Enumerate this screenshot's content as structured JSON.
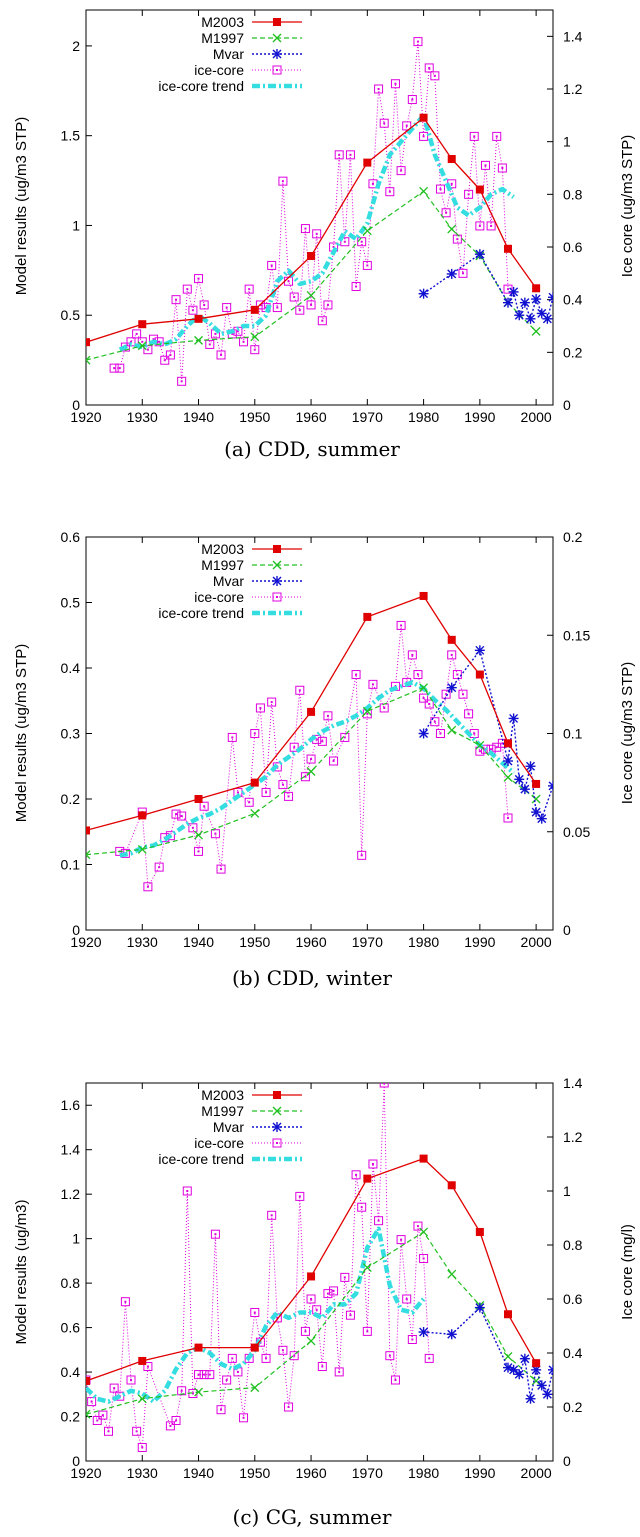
{
  "panels": [
    {
      "caption": "(a) CDD, summer",
      "ylabel": "Model results (ug/m3 STP)",
      "y2label": "Ice core (ug/m3 STP)",
      "xlim": [
        1920,
        2003
      ],
      "ylim": [
        0,
        2.2
      ],
      "y2lim": [
        0,
        1.5
      ],
      "xticks": [
        "1920",
        "1930",
        "1940",
        "1950",
        "1960",
        "1970",
        "1980",
        "1990",
        "2000"
      ],
      "yticks": [
        "0",
        "0.5",
        "1",
        "1.5",
        "2"
      ],
      "y2ticks": [
        "0",
        "0.2",
        "0.4",
        "0.6",
        "0.8",
        "1",
        "1.2",
        "1.4"
      ]
    },
    {
      "caption": "(b) CDD, winter",
      "ylabel": "Model results (ug/m3 STP)",
      "y2label": "Ice core (ug/m3 STP)",
      "xlim": [
        1920,
        2003
      ],
      "ylim": [
        0,
        0.6
      ],
      "y2lim": [
        0,
        0.2
      ],
      "xticks": [
        "1920",
        "1930",
        "1940",
        "1950",
        "1960",
        "1970",
        "1980",
        "1990",
        "2000"
      ],
      "yticks": [
        "0",
        "0.1",
        "0.2",
        "0.3",
        "0.4",
        "0.5",
        "0.6"
      ],
      "y2ticks": [
        "0",
        "0.05",
        "0.1",
        "0.15",
        "0.2"
      ]
    },
    {
      "caption": "(c) CG, summer",
      "ylabel": "Model results (ug/m3)",
      "y2label": "Ice core (mg/l)",
      "xlim": [
        1920,
        2003
      ],
      "ylim": [
        0,
        1.7
      ],
      "y2lim": [
        0,
        1.4
      ],
      "xticks": [
        "1920",
        "1930",
        "1940",
        "1950",
        "1960",
        "1970",
        "1980",
        "1990",
        "2000"
      ],
      "yticks": [
        "0",
        "0.2",
        "0.4",
        "0.6",
        "0.8",
        "1",
        "1.2",
        "1.4",
        "1.6"
      ],
      "y2ticks": [
        "0",
        "0.2",
        "0.4",
        "0.6",
        "0.8",
        "1",
        "1.2",
        "1.4"
      ]
    }
  ],
  "legend": [
    "M2003",
    "M1997",
    "Mvar",
    "ice-core",
    "ice-core trend"
  ],
  "colors": {
    "M2003": "#e00000",
    "M1997": "#20c020",
    "Mvar": "#1010d0",
    "ice-core": "#e000e0",
    "trend": "#33dde0"
  },
  "chart_data": [
    {
      "type": "line",
      "title": "(a) CDD, summer",
      "ylabel": "Model results (ug/m3 STP)",
      "y2label": "Ice core (ug/m3 STP)",
      "xlim": [
        1920,
        2003
      ],
      "ylim": [
        0,
        2.2
      ],
      "y2lim": [
        0,
        1.5
      ],
      "legend_position": "top-left",
      "series": [
        {
          "name": "M2003",
          "axis": "left",
          "x": [
            1920,
            1930,
            1940,
            1950,
            1960,
            1970,
            1980,
            1985,
            1990,
            1995,
            2000
          ],
          "y": [
            0.35,
            0.45,
            0.48,
            0.53,
            0.83,
            1.35,
            1.6,
            1.37,
            1.2,
            0.87,
            0.65
          ]
        },
        {
          "name": "M1997",
          "axis": "left",
          "x": [
            1920,
            1930,
            1940,
            1950,
            1960,
            1970,
            1980,
            1985,
            1990,
            1995,
            2000
          ],
          "y": [
            0.25,
            0.33,
            0.36,
            0.38,
            0.61,
            0.97,
            1.19,
            0.98,
            0.83,
            0.57,
            0.41
          ]
        },
        {
          "name": "Mvar",
          "axis": "left",
          "x": [
            1980,
            1985,
            1990,
            1995,
            1996,
            1997,
            1998,
            1999,
            2000,
            2001,
            2002,
            2003
          ],
          "y": [
            0.62,
            0.73,
            0.84,
            0.57,
            0.63,
            0.5,
            0.57,
            0.48,
            0.59,
            0.51,
            0.48,
            0.6
          ]
        },
        {
          "name": "ice-core",
          "axis": "right",
          "x": [
            1925,
            1926,
            1927,
            1928,
            1929,
            1930,
            1931,
            1932,
            1933,
            1934,
            1935,
            1936,
            1937,
            1938,
            1939,
            1940,
            1941,
            1942,
            1943,
            1944,
            1945,
            1946,
            1947,
            1948,
            1949,
            1950,
            1951,
            1952,
            1953,
            1954,
            1955,
            1956,
            1957,
            1958,
            1959,
            1960,
            1961,
            1962,
            1963,
            1964,
            1965,
            1966,
            1967,
            1968,
            1969,
            1970,
            1971,
            1972,
            1973,
            1974,
            1975,
            1976,
            1977,
            1978,
            1979,
            1980,
            1981,
            1982,
            1983,
            1984,
            1985,
            1986,
            1987,
            1988,
            1989,
            1990,
            1991,
            1992,
            1993,
            1994,
            1995
          ],
          "y": [
            0.14,
            0.14,
            0.22,
            0.24,
            0.27,
            0.24,
            0.21,
            0.25,
            0.24,
            0.17,
            0.19,
            0.4,
            0.09,
            0.44,
            0.36,
            0.48,
            0.38,
            0.23,
            0.27,
            0.19,
            0.37,
            0.27,
            0.28,
            0.24,
            0.44,
            0.21,
            0.38,
            0.37,
            0.53,
            0.37,
            0.85,
            0.47,
            0.41,
            0.36,
            0.67,
            0.38,
            0.65,
            0.32,
            0.38,
            0.6,
            0.95,
            0.62,
            0.95,
            0.45,
            0.62,
            0.53,
            0.84,
            1.2,
            1.07,
            0.81,
            1.22,
            0.89,
            1.06,
            1.16,
            1.38,
            1.02,
            1.28,
            1.25,
            0.82,
            0.73,
            0.84,
            0.63,
            0.5,
            0.8,
            1.02,
            0.68,
            0.91,
            0.68,
            1.02,
            0.9,
            0.44
          ]
        },
        {
          "name": "ice-core trend",
          "axis": "right",
          "x": [
            1926,
            1928,
            1930,
            1932,
            1934,
            1936,
            1938,
            1940,
            1942,
            1944,
            1946,
            1948,
            1950,
            1952,
            1954,
            1956,
            1958,
            1960,
            1962,
            1964,
            1966,
            1968,
            1970,
            1972,
            1974,
            1976,
            1978,
            1980,
            1982,
            1984,
            1986,
            1988,
            1990,
            1992,
            1994,
            1996
          ],
          "y": [
            0.21,
            0.23,
            0.22,
            0.24,
            0.23,
            0.25,
            0.3,
            0.34,
            0.31,
            0.27,
            0.28,
            0.3,
            0.3,
            0.34,
            0.47,
            0.51,
            0.46,
            0.47,
            0.5,
            0.58,
            0.66,
            0.63,
            0.69,
            0.84,
            0.95,
            1.0,
            1.05,
            1.1,
            0.95,
            0.85,
            0.75,
            0.72,
            0.75,
            0.8,
            0.82,
            0.79
          ]
        }
      ]
    },
    {
      "type": "line",
      "title": "(b) CDD, winter",
      "ylabel": "Model results (ug/m3 STP)",
      "y2label": "Ice core (ug/m3 STP)",
      "xlim": [
        1920,
        2003
      ],
      "ylim": [
        0,
        0.6
      ],
      "y2lim": [
        0,
        0.2
      ],
      "legend_position": "top-left",
      "series": [
        {
          "name": "M2003",
          "axis": "left",
          "x": [
            1920,
            1930,
            1940,
            1950,
            1960,
            1970,
            1980,
            1985,
            1990,
            1995,
            2000
          ],
          "y": [
            0.152,
            0.175,
            0.2,
            0.225,
            0.333,
            0.478,
            0.51,
            0.443,
            0.39,
            0.285,
            0.223
          ]
        },
        {
          "name": "M1997",
          "axis": "left",
          "x": [
            1920,
            1930,
            1940,
            1950,
            1960,
            1970,
            1980,
            1985,
            1990,
            1995,
            2000
          ],
          "y": [
            0.115,
            0.123,
            0.145,
            0.178,
            0.242,
            0.334,
            0.37,
            0.305,
            0.282,
            0.233,
            0.2
          ]
        },
        {
          "name": "Mvar",
          "axis": "left",
          "x": [
            1980,
            1985,
            1990,
            1995,
            1996,
            1997,
            1998,
            1999,
            2000,
            2001,
            2003
          ],
          "y": [
            0.3,
            0.37,
            0.427,
            0.258,
            0.323,
            0.23,
            0.215,
            0.25,
            0.18,
            0.17,
            0.22
          ]
        },
        {
          "name": "ice-core",
          "axis": "right",
          "x": [
            1926,
            1927,
            1930,
            1931,
            1933,
            1934,
            1935,
            1936,
            1937,
            1939,
            1940,
            1941,
            1943,
            1944,
            1946,
            1947,
            1949,
            1950,
            1951,
            1952,
            1953,
            1954,
            1955,
            1956,
            1957,
            1958,
            1959,
            1960,
            1961,
            1962,
            1963,
            1964,
            1966,
            1968,
            1969,
            1970,
            1971,
            1973,
            1975,
            1976,
            1977,
            1978,
            1979,
            1980,
            1981,
            1982,
            1983,
            1984,
            1985,
            1986,
            1987,
            1988,
            1989,
            1990,
            1991,
            1992,
            1993,
            1994,
            1995
          ],
          "y": [
            0.04,
            0.039,
            0.06,
            0.022,
            0.032,
            0.047,
            0.048,
            0.059,
            0.058,
            0.052,
            0.04,
            0.063,
            0.049,
            0.031,
            0.098,
            0.07,
            0.065,
            0.1,
            0.113,
            0.07,
            0.116,
            0.083,
            0.074,
            0.068,
            0.093,
            0.122,
            0.078,
            0.087,
            0.097,
            0.096,
            0.109,
            0.086,
            0.098,
            0.13,
            0.038,
            0.11,
            0.125,
            0.113,
            0.124,
            0.155,
            0.126,
            0.14,
            0.13,
            0.118,
            0.115,
            0.106,
            0.1,
            0.12,
            0.14,
            0.13,
            0.12,
            0.11,
            0.1,
            0.091,
            0.092,
            0.092,
            0.093,
            0.095,
            0.057
          ]
        },
        {
          "name": "ice-core trend",
          "axis": "right",
          "x": [
            1926,
            1928,
            1930,
            1932,
            1934,
            1936,
            1938,
            1940,
            1942,
            1944,
            1946,
            1948,
            1950,
            1952,
            1954,
            1956,
            1958,
            1960,
            1962,
            1964,
            1966,
            1968,
            1970,
            1972,
            1974,
            1976,
            1978,
            1980,
            1982,
            1984,
            1986,
            1988,
            1990,
            1992,
            1994,
            1996
          ],
          "y": [
            0.038,
            0.039,
            0.042,
            0.043,
            0.046,
            0.05,
            0.054,
            0.057,
            0.059,
            0.062,
            0.066,
            0.07,
            0.074,
            0.078,
            0.084,
            0.088,
            0.092,
            0.097,
            0.101,
            0.104,
            0.106,
            0.109,
            0.113,
            0.118,
            0.122,
            0.124,
            0.126,
            0.123,
            0.117,
            0.112,
            0.106,
            0.1,
            0.094,
            0.09,
            0.085,
            0.08
          ]
        }
      ]
    },
    {
      "type": "line",
      "title": "(c) CG, summer",
      "ylabel": "Model results (ug/m3)",
      "y2label": "Ice core (mg/l)",
      "xlim": [
        1920,
        2003
      ],
      "ylim": [
        0,
        1.7
      ],
      "y2lim": [
        0,
        1.4
      ],
      "legend_position": "top-left",
      "series": [
        {
          "name": "M2003",
          "axis": "left",
          "x": [
            1920,
            1930,
            1940,
            1950,
            1960,
            1970,
            1980,
            1985,
            1990,
            1995,
            2000
          ],
          "y": [
            0.36,
            0.45,
            0.51,
            0.51,
            0.83,
            1.27,
            1.36,
            1.24,
            1.03,
            0.66,
            0.44
          ]
        },
        {
          "name": "M1997",
          "axis": "left",
          "x": [
            1920,
            1930,
            1940,
            1950,
            1960,
            1970,
            1980,
            1985,
            1990,
            1995,
            2000
          ],
          "y": [
            0.21,
            0.28,
            0.31,
            0.33,
            0.54,
            0.87,
            1.03,
            0.84,
            0.7,
            0.47,
            0.36
          ]
        },
        {
          "name": "Mvar",
          "axis": "left",
          "x": [
            1980,
            1985,
            1990,
            1995,
            1996,
            1997,
            1998,
            1999,
            2000,
            2001,
            2002,
            2003
          ],
          "y": [
            0.58,
            0.57,
            0.69,
            0.42,
            0.41,
            0.39,
            0.46,
            0.28,
            0.41,
            0.34,
            0.3,
            0.41
          ]
        },
        {
          "name": "ice-core",
          "axis": "right",
          "x": [
            1920,
            1921,
            1922,
            1923,
            1924,
            1925,
            1926,
            1927,
            1928,
            1929,
            1930,
            1931,
            1935,
            1936,
            1937,
            1938,
            1939,
            1940,
            1941,
            1942,
            1943,
            1944,
            1945,
            1946,
            1947,
            1948,
            1949,
            1950,
            1951,
            1952,
            1953,
            1954,
            1955,
            1956,
            1957,
            1958,
            1959,
            1960,
            1961,
            1962,
            1963,
            1964,
            1965,
            1966,
            1967,
            1968,
            1969,
            1970,
            1971,
            1972,
            1973,
            1974,
            1975,
            1976,
            1977,
            1978,
            1979,
            1980,
            1981
          ],
          "y": [
            0.3,
            0.22,
            0.15,
            0.17,
            0.11,
            0.27,
            0.24,
            0.59,
            0.3,
            0.11,
            0.05,
            0.35,
            0.13,
            0.15,
            0.26,
            1.0,
            0.25,
            0.32,
            0.32,
            0.32,
            0.84,
            0.19,
            0.3,
            0.38,
            0.33,
            0.16,
            0.38,
            0.55,
            0.44,
            0.38,
            0.91,
            0.53,
            0.41,
            0.2,
            0.39,
            0.98,
            0.48,
            0.6,
            0.56,
            0.35,
            0.62,
            0.63,
            0.33,
            0.68,
            0.54,
            1.06,
            0.94,
            0.48,
            1.1,
            0.89,
            1.4,
            0.39,
            0.3,
            0.82,
            0.6,
            0.45,
            0.87,
            0.75,
            0.38
          ]
        },
        {
          "name": "ice-core trend",
          "axis": "right",
          "x": [
            1920,
            1922,
            1924,
            1926,
            1928,
            1930,
            1932,
            1934,
            1936,
            1938,
            1940,
            1942,
            1944,
            1946,
            1948,
            1950,
            1952,
            1954,
            1956,
            1958,
            1960,
            1962,
            1964,
            1966,
            1968,
            1970,
            1972,
            1974,
            1976,
            1978,
            1980
          ],
          "y": [
            0.27,
            0.23,
            0.22,
            0.24,
            0.26,
            0.25,
            0.22,
            0.26,
            0.34,
            0.4,
            0.42,
            0.4,
            0.36,
            0.34,
            0.36,
            0.41,
            0.5,
            0.55,
            0.53,
            0.55,
            0.55,
            0.53,
            0.58,
            0.58,
            0.62,
            0.79,
            0.86,
            0.65,
            0.56,
            0.55,
            0.6
          ]
        }
      ]
    }
  ]
}
